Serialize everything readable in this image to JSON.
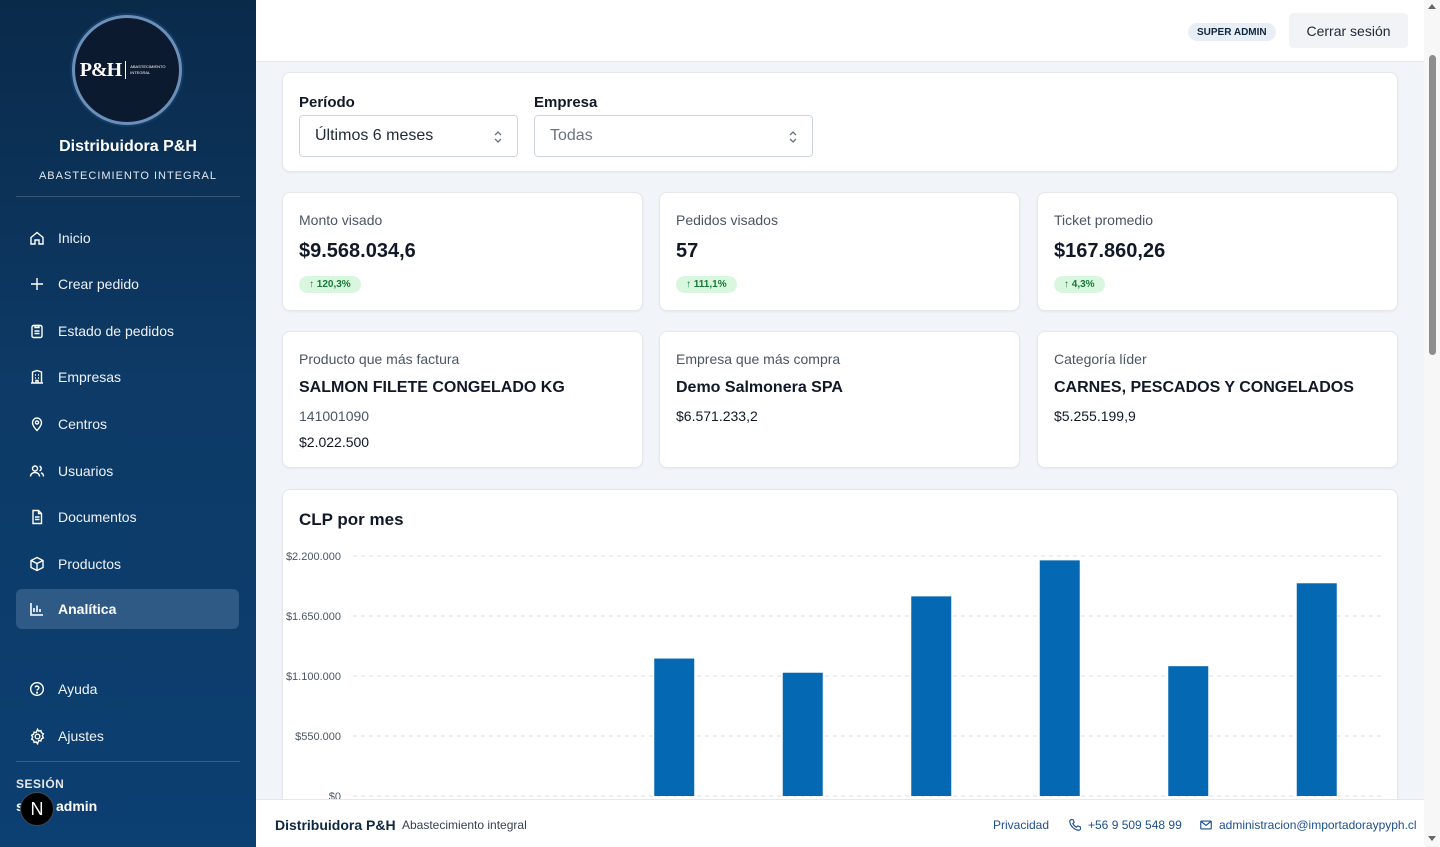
{
  "brand": {
    "logo_mark": "P&H",
    "logo_sub": "ABASTECIMIENTO INTEGRAL",
    "name": "Distribuidora P&H",
    "tagline": "ABASTECIMIENTO INTEGRAL"
  },
  "sidebar": {
    "items": [
      {
        "label": "Inicio",
        "icon": "home-icon"
      },
      {
        "label": "Crear pedido",
        "icon": "plus-icon"
      },
      {
        "label": "Estado de pedidos",
        "icon": "clipboard-icon"
      },
      {
        "label": "Empresas",
        "icon": "building-icon"
      },
      {
        "label": "Centros",
        "icon": "location-pin-icon"
      },
      {
        "label": "Usuarios",
        "icon": "users-icon"
      },
      {
        "label": "Documentos",
        "icon": "document-icon"
      },
      {
        "label": "Productos",
        "icon": "package-icon"
      },
      {
        "label": "Analítica",
        "icon": "bar-chart-icon",
        "active": true
      }
    ],
    "bottom_items": [
      {
        "label": "Ayuda",
        "icon": "help-circle-icon"
      },
      {
        "label": "Ajustes",
        "icon": "gear-icon"
      }
    ],
    "session": {
      "label": "SESIÓN",
      "user_prefix": "s",
      "user": "admin",
      "avatar_letter": "N"
    }
  },
  "header": {
    "role_badge": "SUPER ADMIN",
    "logout_label": "Cerrar sesión"
  },
  "filters": {
    "period": {
      "label": "Período",
      "value": "Últimos 6 meses"
    },
    "company": {
      "label": "Empresa",
      "value": "Todas"
    }
  },
  "kpis": [
    {
      "title": "Monto visado",
      "value": "$9.568.034,6",
      "delta": "↑ 120,3%"
    },
    {
      "title": "Pedidos visados",
      "value": "57",
      "delta": "↑ 111,1%"
    },
    {
      "title": "Ticket promedio",
      "value": "$167.860,26",
      "delta": "↑ 4,3%"
    }
  ],
  "tops": [
    {
      "title": "Producto que más factura",
      "name": "SALMON FILETE CONGELADO KG",
      "line1": "141001090",
      "line2": "$2.022.500"
    },
    {
      "title": "Empresa que más compra",
      "name": "Demo Salmonera SPA",
      "line1": "$6.571.233,2"
    },
    {
      "title": "Categoría líder",
      "name": "CARNES, PESCADOS Y CONGELADOS",
      "line1": "$5.255.199,9"
    }
  ],
  "chart_data": {
    "type": "bar",
    "title": "CLP por mes",
    "categories": [
      "",
      "",
      "",
      "",
      "",
      "",
      "",
      ""
    ],
    "values": [
      0,
      0,
      1260000,
      1130000,
      1830000,
      2160000,
      1190000,
      1950000
    ],
    "yticks": [
      0,
      550000,
      1100000,
      1650000,
      2200000
    ],
    "ytick_labels": [
      "$0",
      "$550.000",
      "$1.100.000",
      "$1.650.000",
      "$2.200.000"
    ],
    "ylim": [
      0,
      2200000
    ],
    "grid": true,
    "bar_color": "#0568b3",
    "xlabel": "",
    "ylabel": ""
  },
  "footer": {
    "brand": "Distribuidora P&H",
    "tagline": "Abastecimiento integral",
    "privacy": "Privacidad",
    "phone": "+56 9 509 548 99",
    "email": "administracion@importadoraypyph.cl"
  }
}
